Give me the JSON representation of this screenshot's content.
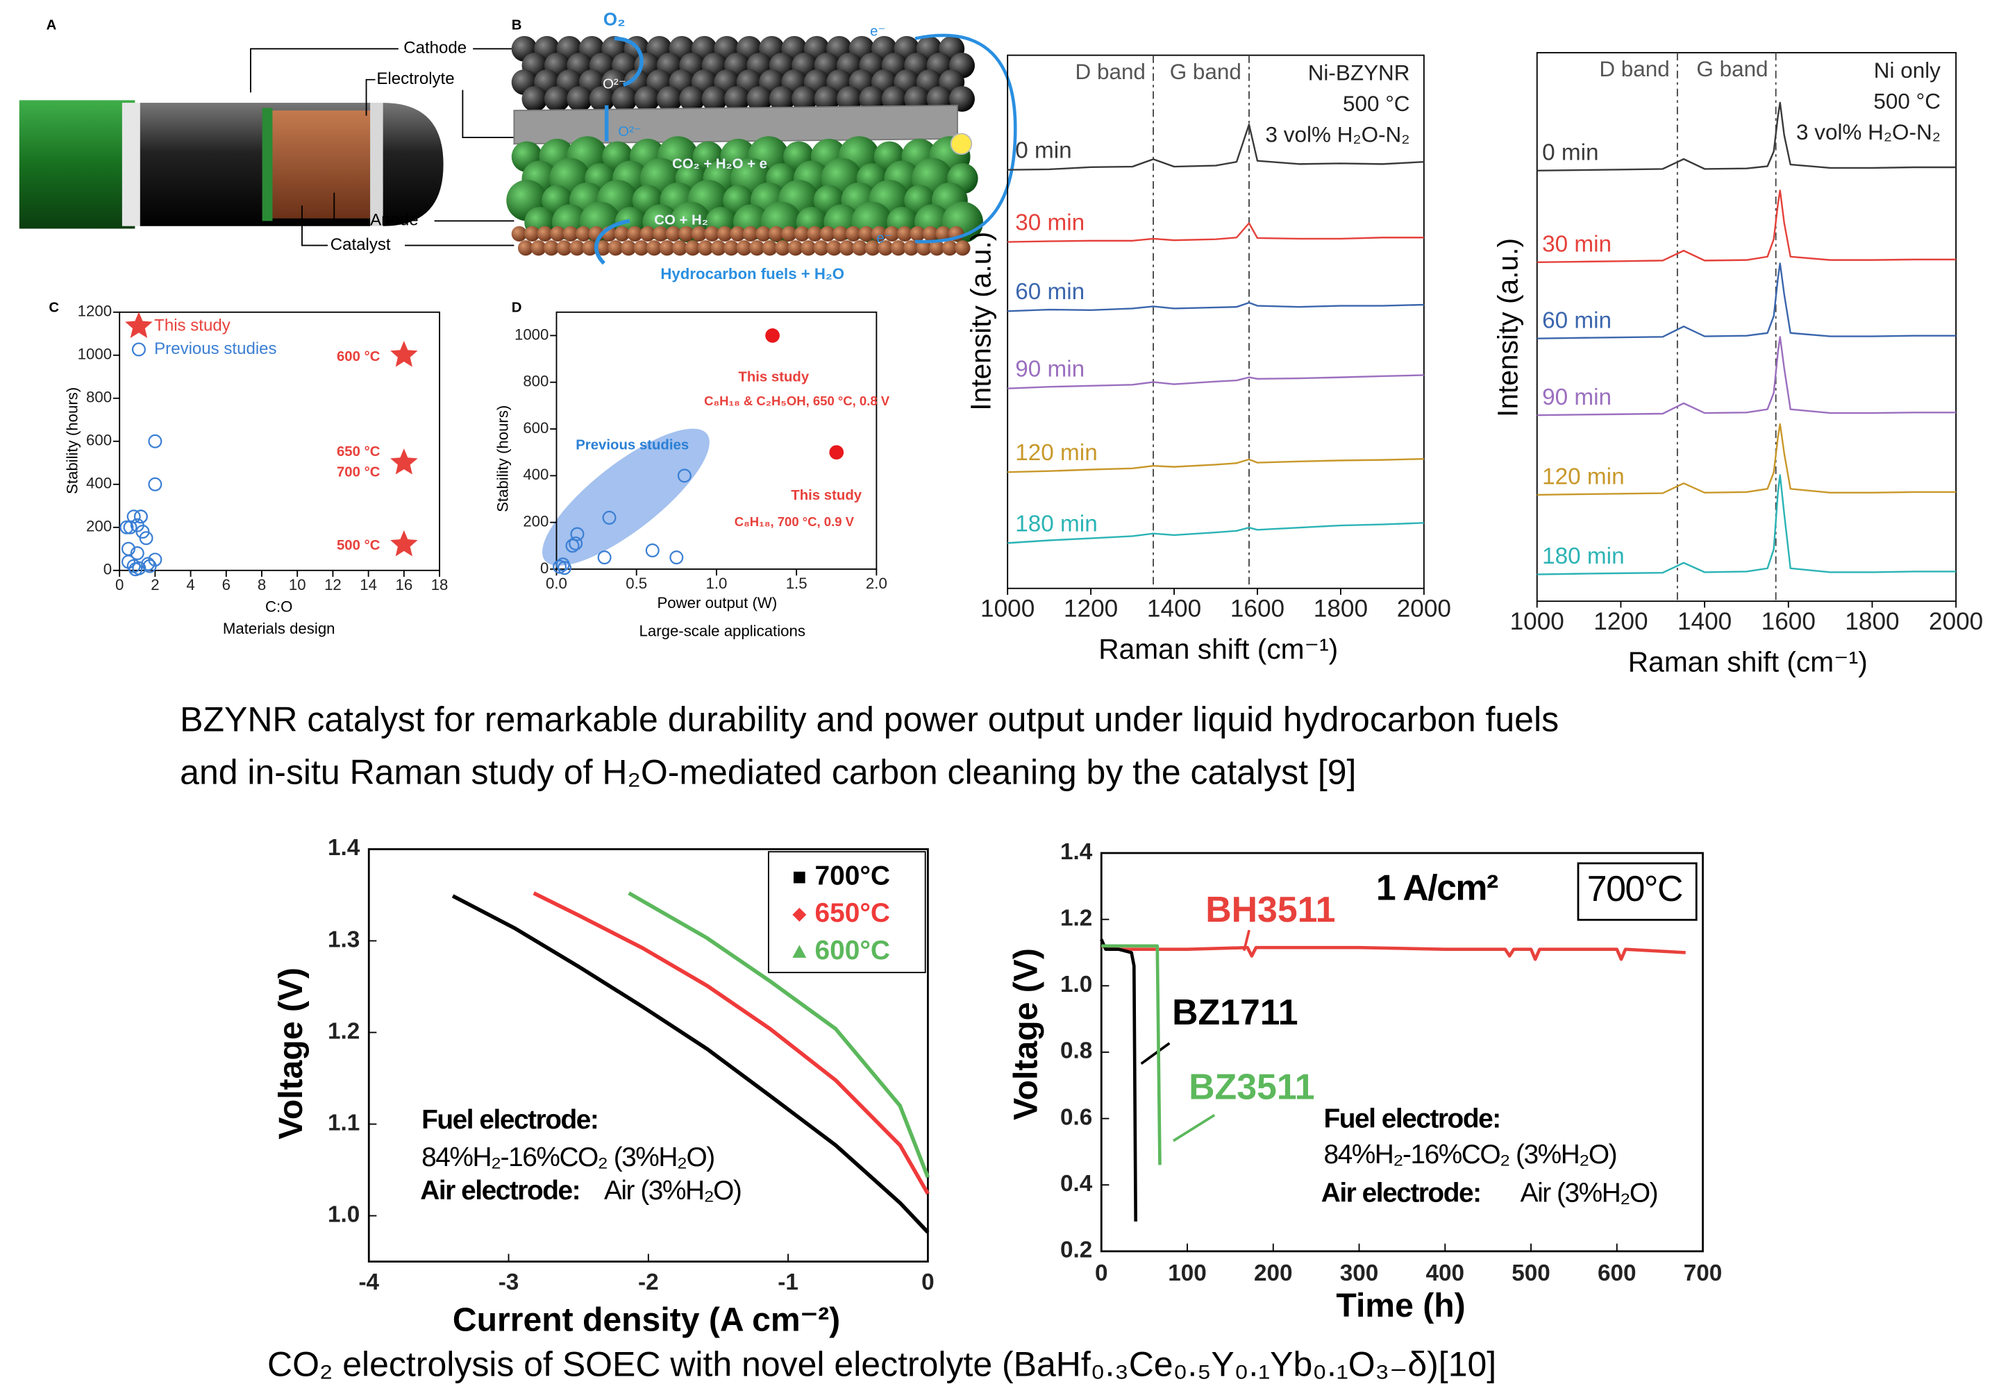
{
  "captions": {
    "top": [
      "BZYNR catalyst for remarkable durability and power output under liquid hydrocarbon fuels",
      "and in-situ Raman study of H₂O-mediated carbon cleaning by the catalyst [9]"
    ],
    "bottom": "CO₂ electrolysis of SOEC with novel electrolyte (BaHf₀.₃Ce₀.₅Y₀.₁Yb₀.₁O₃₋δ)[10]"
  },
  "schematic_a": {
    "panel": "A",
    "parts": [
      "Cathode",
      "Electrolyte",
      "Anode",
      "Catalyst"
    ]
  },
  "schematic_b": {
    "panel": "B",
    "labels": [
      "O₂",
      "O²⁻",
      "O²⁻",
      "CO₂ + H₂O + e",
      "CO + H₂",
      "Hydrocarbon fuels + H₂O",
      "e⁻",
      "e⁻"
    ]
  },
  "chart_data": [
    {
      "type": "scatter",
      "panel": "C",
      "xlabel": "C:O",
      "caption": "Materials design",
      "ylabel": "Stability (hours)",
      "xlim": [
        0,
        18
      ],
      "ylim": [
        0,
        1200
      ],
      "xticks": [
        0,
        2,
        4,
        6,
        8,
        10,
        12,
        14,
        16,
        18
      ],
      "yticks": [
        0,
        200,
        400,
        600,
        800,
        1000,
        1200
      ],
      "legend": "upper left",
      "series": [
        {
          "name": "This study",
          "color": "#e8413c",
          "marker": "star",
          "x": [
            16,
            16,
            16
          ],
          "values": [
            1000,
            500,
            120
          ]
        },
        {
          "name": "Previous studies",
          "color": "#3b7fd4",
          "marker": "circle-open",
          "x": [
            0.5,
            0.6,
            0.8,
            1,
            1.2,
            1.5,
            0.5,
            0.8,
            1,
            1.3,
            1.6,
            2,
            2,
            2,
            0.9,
            1.1,
            0.4,
            1.7,
            1.2
          ],
          "values": [
            100,
            200,
            250,
            210,
            250,
            150,
            40,
            20,
            80,
            180,
            30,
            600,
            400,
            50,
            5,
            10,
            200,
            20,
            250
          ]
        }
      ],
      "annotations": [
        "600 °C",
        "650 °C",
        "700 °C",
        "500 °C"
      ]
    },
    {
      "type": "scatter",
      "panel": "D",
      "xlabel": "Power output (W)",
      "caption": "Large-scale applications",
      "ylabel": "Stability (hours)",
      "xlim": [
        0,
        2
      ],
      "ylim": [
        0,
        1100
      ],
      "xticks": [
        {
          "value": 0,
          "label": "0.0"
        },
        0.5,
        {
          "value": 1,
          "label": "1.0"
        },
        1.5,
        {
          "value": 2,
          "label": "2.0"
        }
      ],
      "yticks": [
        0,
        200,
        400,
        600,
        800,
        1000
      ],
      "series": [
        {
          "color": "#e8181c",
          "marker": "filled",
          "x": [
            1.35,
            1.75
          ],
          "values": [
            1000,
            500
          ]
        },
        {
          "color": "#3b7fd4",
          "marker": "circle-open",
          "x": [
            0.02,
            0.04,
            0.05,
            0.1,
            0.12,
            0.13,
            0.3,
            0.33,
            0.6,
            0.75,
            0.8
          ],
          "values": [
            10,
            20,
            5,
            100,
            110,
            150,
            50,
            220,
            80,
            50,
            400
          ]
        }
      ],
      "annotations": [
        "This study",
        "C₈H₁₈ & C₂H₅OH, 650 °C, 0.8 V",
        "Previous studies",
        "This study",
        "C₈H₁₈, 700 °C, 0.9 V"
      ]
    },
    {
      "type": "line",
      "xlabel": "Raman shift (cm⁻¹)",
      "ylabel": "Intensity (a.u.)",
      "xlim": [
        1000,
        2000
      ],
      "ylim": [
        0,
        100
      ],
      "xticks": [
        1000,
        1200,
        1400,
        1600,
        1800,
        2000
      ],
      "bands": [
        {
          "name": "D band",
          "x": 1350
        },
        {
          "name": "G band",
          "x": 1580
        }
      ],
      "x": [
        1000,
        1100,
        1200,
        1300,
        1350,
        1400,
        1500,
        1550,
        1580,
        1600,
        1700,
        1800,
        1900,
        2000
      ],
      "series": [
        {
          "name": "0 min",
          "color": "#3a3a3a",
          "values": [
            78.5,
            78.6,
            79,
            79.1,
            80.5,
            79.1,
            79.3,
            80,
            87,
            80.2,
            79.6,
            79.7,
            79.6,
            80
          ]
        },
        {
          "name": "30 min",
          "color": "#e5413b",
          "values": [
            65,
            65.1,
            65.2,
            65.2,
            65.6,
            65.3,
            65.5,
            65.8,
            68.5,
            65.7,
            65.6,
            65.6,
            65.8,
            65.8
          ]
        },
        {
          "name": "60 min",
          "color": "#3b66ad",
          "values": [
            52,
            52.3,
            52.2,
            52.5,
            52.9,
            52.5,
            52.7,
            52.8,
            53.6,
            53,
            52.8,
            53,
            53,
            53.2
          ]
        },
        {
          "name": "90 min",
          "color": "#9b6fbf",
          "values": [
            37.5,
            37.8,
            38,
            38.2,
            38.7,
            38.3,
            38.8,
            39,
            39.6,
            39.3,
            39.4,
            39.6,
            39.8,
            40
          ]
        },
        {
          "name": "120 min",
          "color": "#c8982a",
          "values": [
            21.8,
            22,
            22.3,
            22.5,
            23,
            22.8,
            23.2,
            23.5,
            24.2,
            23.6,
            23.8,
            24,
            24.1,
            24.3
          ]
        },
        {
          "name": "180 min",
          "color": "#2bb3b5",
          "values": [
            8.5,
            9,
            9.4,
            9.8,
            10.3,
            10,
            10.5,
            10.8,
            11.4,
            11,
            11.4,
            11.8,
            12,
            12.3
          ]
        }
      ],
      "annotations": [
        "Ni-BZYNR",
        "500 °C",
        "3 vol% H₂O-N₂"
      ]
    },
    {
      "type": "line",
      "xlabel": "Raman shift (cm⁻¹)",
      "ylabel": "Intensity (a.u.)",
      "xlim": [
        1000,
        2000
      ],
      "ylim": [
        0,
        100
      ],
      "xticks": [
        1000,
        1200,
        1400,
        1600,
        1800,
        2000
      ],
      "bands": [
        {
          "name": "D band",
          "x": 1335
        },
        {
          "name": "G band",
          "x": 1570
        }
      ],
      "x": [
        1000,
        1100,
        1200,
        1300,
        1350,
        1400,
        1500,
        1550,
        1565,
        1575,
        1580,
        1590,
        1605,
        1700,
        1800,
        1900,
        2000
      ],
      "series": [
        {
          "name": "0 min",
          "color": "#3a3a3a",
          "values": [
            78.5,
            78.6,
            78.7,
            78.8,
            80.6,
            78.8,
            78.9,
            79.3,
            82,
            88.5,
            90.9,
            85,
            79.6,
            79,
            79,
            79.1,
            79.1
          ]
        },
        {
          "name": "30 min",
          "color": "#e5413b",
          "values": [
            61.8,
            61.9,
            62,
            62.1,
            63.9,
            62.1,
            62.2,
            62.8,
            66,
            72.5,
            74.9,
            69,
            62.8,
            62.2,
            62.2,
            62.3,
            62.3
          ]
        },
        {
          "name": "60 min",
          "color": "#3b66ad",
          "values": [
            47.9,
            48,
            48.1,
            48.2,
            50.1,
            48.3,
            48.4,
            48.9,
            52,
            59,
            61.6,
            56,
            48.9,
            48.3,
            48.3,
            48.4,
            48.4
          ]
        },
        {
          "name": "90 min",
          "color": "#9b6fbf",
          "values": [
            33.9,
            34,
            34.1,
            34.2,
            36.1,
            34.3,
            34.4,
            35,
            38,
            45.5,
            48.2,
            42.5,
            35,
            34.3,
            34.3,
            34.4,
            34.4
          ]
        },
        {
          "name": "120 min",
          "color": "#c8982a",
          "values": [
            19.4,
            19.5,
            19.6,
            19.7,
            21.5,
            19.8,
            19.9,
            20.5,
            23.5,
            30,
            32.3,
            27,
            20.5,
            19.8,
            19.8,
            19.9,
            19.9
          ]
        },
        {
          "name": "180 min",
          "color": "#2bb3b5",
          "values": [
            4.9,
            5,
            5.1,
            5.2,
            7,
            5.3,
            5.4,
            6,
            9.5,
            20,
            23,
            16,
            6,
            5.3,
            5.3,
            5.4,
            5.4
          ]
        }
      ],
      "annotations": [
        "Ni only",
        "500 °C",
        "3 vol% H₂O-N₂"
      ]
    },
    {
      "type": "line",
      "xlabel": "Current density (A cm⁻²)",
      "ylabel": "Voltage (V)",
      "xlim": [
        -4,
        0
      ],
      "ylim": [
        0.95,
        1.4
      ],
      "xticks": [
        -4,
        -3,
        -2,
        -1,
        0
      ],
      "yticks": [
        {
          "value": 1,
          "label": "1.0"
        },
        1.1,
        1.2,
        1.3,
        1.4
      ],
      "legend": "upper right",
      "series": [
        {
          "name": "700°C",
          "color": "#000000",
          "marker": "square",
          "x": [
            -3.4,
            -2.96,
            -2.5,
            -2.04,
            -1.58,
            -1.13,
            -0.66,
            -0.2,
            0
          ],
          "values": [
            1.349,
            1.314,
            1.272,
            1.228,
            1.182,
            1.131,
            1.077,
            1.014,
            0.982
          ]
        },
        {
          "name": "650°C",
          "color": "#f03a3a",
          "marker": "diamond",
          "x": [
            -2.82,
            -2.5,
            -2.04,
            -1.58,
            -1.13,
            -0.66,
            -0.2,
            0
          ],
          "values": [
            1.352,
            1.328,
            1.292,
            1.251,
            1.204,
            1.148,
            1.077,
            1.024
          ]
        },
        {
          "name": "600°C",
          "color": "#5cb85c",
          "marker": "triangle",
          "x": [
            -2.14,
            -1.58,
            -1.13,
            -0.66,
            -0.2,
            0
          ],
          "values": [
            1.352,
            1.303,
            1.256,
            1.204,
            1.12,
            1.042
          ]
        }
      ],
      "annotations": [
        "Fuel electrode:",
        "84%H₂-16%CO₂ (3%H₂O)",
        "Air electrode:",
        "Air (3%H₂O)"
      ]
    },
    {
      "type": "line",
      "xlabel": "Time (h)",
      "ylabel": "Voltage (V)",
      "xlim": [
        0,
        700
      ],
      "ylim": [
        0.2,
        1.4
      ],
      "xticks": [
        0,
        100,
        200,
        300,
        400,
        500,
        600,
        700
      ],
      "yticks": [
        0.2,
        0.4,
        0.6,
        0.8,
        {
          "value": 1,
          "label": "1.0"
        },
        1.2,
        1.4
      ],
      "series": [
        {
          "name": "BH3511",
          "color": "#e8413c",
          "x": [
            0,
            20,
            100,
            170,
            175,
            180,
            300,
            400,
            470,
            475,
            480,
            500,
            505,
            510,
            600,
            605,
            610,
            680
          ],
          "values": [
            1.12,
            1.11,
            1.11,
            1.115,
            1.09,
            1.115,
            1.115,
            1.11,
            1.11,
            1.09,
            1.11,
            1.11,
            1.08,
            1.11,
            1.11,
            1.08,
            1.11,
            1.1
          ]
        },
        {
          "name": "BZ1711",
          "color": "#000000",
          "x": [
            0,
            5,
            20,
            35,
            38,
            40
          ],
          "values": [
            1.14,
            1.11,
            1.11,
            1.1,
            1.06,
            0.29
          ]
        },
        {
          "name": "BZ3511",
          "color": "#5cb85c",
          "x": [
            0,
            30,
            65,
            68
          ],
          "values": [
            1.12,
            1.12,
            1.12,
            0.46
          ]
        }
      ],
      "annotations": [
        "1 A/cm²",
        "700°C",
        "Fuel electrode:",
        "84%H₂-16%CO₂ (3%H₂O)",
        "Air electrode:",
        "Air (3%H₂O)"
      ]
    }
  ]
}
